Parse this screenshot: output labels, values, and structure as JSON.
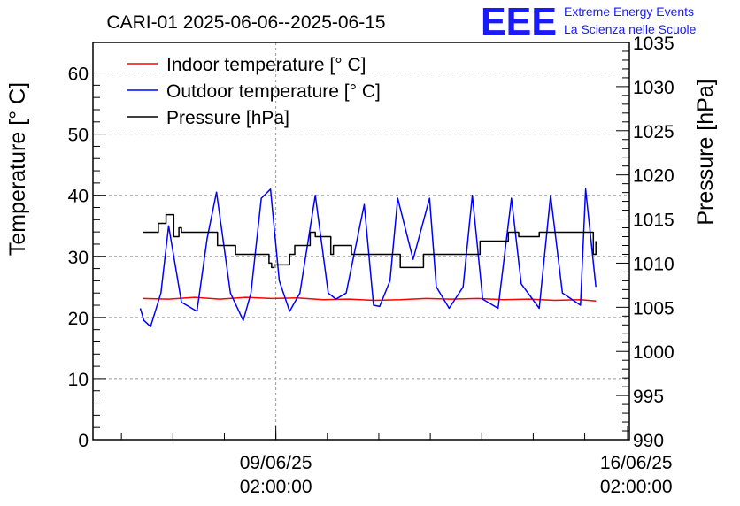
{
  "chart_data": {
    "type": "line",
    "title": "CARI-01 2025-06-06--2025-06-15",
    "ylabel": "Temperature [° C]",
    "y2label": "Pressure [hPa]",
    "ylim": [
      0,
      65
    ],
    "y2lim": [
      990,
      1035
    ],
    "y_ticks": [
      "0",
      "10",
      "20",
      "30",
      "40",
      "50",
      "60"
    ],
    "y2_ticks": [
      "990",
      "995",
      "1000",
      "1005",
      "1010",
      "1015",
      "1020",
      "1025",
      "1030",
      "1035"
    ],
    "x_ticks": [
      {
        "date": "09/06/25",
        "time": "02:00:00"
      },
      {
        "date": "16/06/25",
        "time": "02:00:00"
      }
    ],
    "x_unit": "days since 2025-06-06 00:00",
    "xlim": [
      -0.47,
      9.95
    ],
    "x_tick_values": [
      3.083,
      10.083
    ],
    "grid": true,
    "legend_position": "top-left",
    "series": [
      {
        "name": "Indoor temperature [° C]",
        "axis": "left",
        "color": "#ff0000",
        "x": [
          0.5,
          1.0,
          1.5,
          2.0,
          2.5,
          3.0,
          3.5,
          4.0,
          4.5,
          5.0,
          5.5,
          6.0,
          6.5,
          7.0,
          7.5,
          8.0,
          8.5,
          9.0,
          9.3
        ],
        "values": [
          23.1,
          23.0,
          23.3,
          23.0,
          23.3,
          23.1,
          23.2,
          22.9,
          23.0,
          22.8,
          22.9,
          23.1,
          23.0,
          23.1,
          22.9,
          23.0,
          22.8,
          22.9,
          22.7
        ]
      },
      {
        "name": "Outdoor temperature [° C]",
        "axis": "left",
        "color": "#0000ff",
        "x": [
          0.45,
          0.52,
          0.65,
          0.85,
          1.0,
          1.25,
          1.55,
          1.75,
          1.93,
          2.2,
          2.45,
          2.6,
          2.8,
          2.98,
          3.15,
          3.35,
          3.55,
          3.85,
          4.1,
          4.25,
          4.45,
          4.8,
          4.98,
          5.1,
          5.3,
          5.45,
          5.75,
          6.07,
          6.2,
          6.45,
          6.72,
          6.9,
          7.1,
          7.4,
          7.66,
          7.85,
          8.2,
          8.42,
          8.65,
          9.0,
          9.1,
          9.3
        ],
        "values": [
          21.5,
          19.5,
          18.5,
          24.0,
          35.0,
          22.5,
          21.0,
          33.0,
          40.5,
          24.0,
          19.5,
          24.0,
          39.5,
          41.0,
          26.0,
          21.0,
          24.0,
          40.0,
          24.0,
          23.0,
          24.0,
          38.5,
          22.0,
          21.8,
          26.0,
          39.5,
          29.5,
          39.5,
          25.0,
          21.5,
          25.0,
          40.0,
          23.0,
          21.5,
          39.5,
          25.5,
          21.5,
          40.0,
          24.0,
          22.0,
          41.0,
          25.0
        ]
      },
      {
        "name": "Pressure [hPa]",
        "axis": "right",
        "color": "#000000",
        "x": [
          0.5,
          0.75,
          0.8,
          0.95,
          1.1,
          1.2,
          1.25,
          1.5,
          1.85,
          1.95,
          2.2,
          2.3,
          2.6,
          2.95,
          3.0,
          3.05,
          3.35,
          3.45,
          3.75,
          3.85,
          4.15,
          4.2,
          4.55,
          4.7,
          5.0,
          5.5,
          5.95,
          6.35,
          6.55,
          7.05,
          7.3,
          7.6,
          7.8,
          8.2,
          8.6,
          9.25,
          9.3
        ],
        "values": [
          1013.5,
          1013.5,
          1014.5,
          1015.5,
          1013.0,
          1014.0,
          1013.5,
          1013.5,
          1013.5,
          1012.0,
          1012.0,
          1011.0,
          1011.0,
          1010.0,
          1009.5,
          1009.8,
          1011.0,
          1012.0,
          1013.5,
          1013.0,
          1011.0,
          1012.0,
          1011.0,
          1011.0,
          1011.0,
          1009.5,
          1011.0,
          1011.0,
          1011.0,
          1012.5,
          1012.5,
          1013.5,
          1013.0,
          1013.5,
          1013.5,
          1011.0,
          1012.5
        ]
      }
    ]
  },
  "logo": {
    "mark": "EEE",
    "line1": "Extreme Energy Events",
    "line2": "La Scienza nelle Scuole",
    "color": "#0000ff"
  }
}
